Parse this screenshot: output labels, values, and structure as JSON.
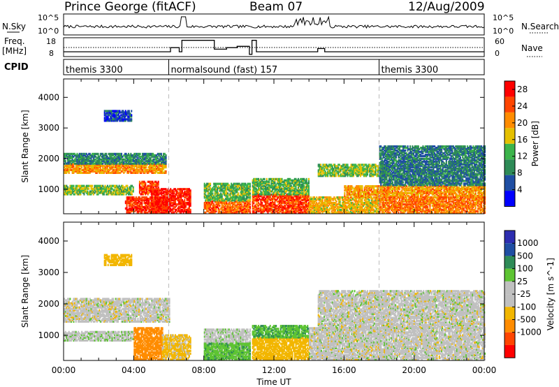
{
  "header": {
    "station": "Prince George (fitACF)",
    "beam": "Beam 07",
    "date": "12/Aug/2009"
  },
  "strip_nsky": {
    "label": "N.Sky",
    "left_ticks": [
      "10^5",
      "10^0"
    ],
    "right_label": "N.Search",
    "right_ticks": [
      "10^5",
      "10^0"
    ]
  },
  "strip_freq": {
    "label_line1": "Freq.",
    "label_line2": "[MHz]",
    "left_ticks": [
      "18",
      "8"
    ],
    "right_label": "Nave",
    "right_ticks": [
      "60",
      "0"
    ],
    "freq_steps": [
      {
        "t0": 0.0,
        "t1": 6.1,
        "mhz": 10.3
      },
      {
        "t0": 6.1,
        "t1": 6.6,
        "mhz": 12.7
      },
      {
        "t0": 6.6,
        "t1": 6.75,
        "mhz": 10.3
      },
      {
        "t0": 6.75,
        "t1": 7.2,
        "mhz": 17.0
      },
      {
        "t0": 8.0,
        "t1": 8.6,
        "mhz": 17.0
      },
      {
        "t0": 8.6,
        "t1": 9.3,
        "mhz": 11.8
      },
      {
        "t0": 9.3,
        "t1": 9.9,
        "mhz": 12.7
      },
      {
        "t0": 9.9,
        "t1": 10.6,
        "mhz": 13.5
      },
      {
        "t0": 10.6,
        "t1": 10.75,
        "mhz": 8.8
      },
      {
        "t0": 10.75,
        "t1": 11.0,
        "mhz": 17.0
      },
      {
        "t0": 11.0,
        "t1": 14.5,
        "mhz": 10.3
      },
      {
        "t0": 14.5,
        "t1": 14.9,
        "mhz": 12.2
      },
      {
        "t0": 14.9,
        "t1": 24.0,
        "mhz": 10.3
      }
    ]
  },
  "cpid": {
    "label": "CPID",
    "segments": [
      {
        "t0": 0.0,
        "t1": 6.0,
        "text": "themis 3300"
      },
      {
        "t0": 6.0,
        "t1": 18.0,
        "text": "normalsound (fast) 157"
      },
      {
        "t0": 18.0,
        "t1": 24.0,
        "text": "themis 3300"
      }
    ]
  },
  "colors": {
    "power_scale": [
      "#0000ff",
      "#1f4ea3",
      "#2e8b57",
      "#3cb44b",
      "#e5c000",
      "#ff8c00",
      "#ff4500",
      "#ff0000"
    ],
    "velocity_scale": [
      "#ff0000",
      "#ff4500",
      "#ff8c00",
      "#f2b600",
      "#c0c0c0",
      "#c0c0c0",
      "#5ec433",
      "#2e8b57",
      "#1f4ea3",
      "#2d2db0"
    ]
  },
  "chart_data": [
    {
      "type": "heatmap",
      "title": "",
      "xlabel": "Time UT",
      "ylabel": "Slant Range [km]",
      "xlim": [
        "00:00",
        "24:00"
      ],
      "ylim": [
        200,
        4600
      ],
      "x_ticks": [
        "00:00",
        "04:00",
        "08:00",
        "12:00",
        "16:00",
        "20:00",
        "00:00"
      ],
      "y_ticks": [
        1000,
        2000,
        3000,
        4000
      ],
      "colorbar": {
        "label": "Power [dB]",
        "ticks": [
          4,
          8,
          12,
          16,
          20,
          24,
          28
        ],
        "range": [
          0,
          30
        ]
      },
      "data_gaps_ut": [
        [
          7.2,
          8.0
        ],
        [
          10.6,
          10.75
        ]
      ],
      "regions": [
        {
          "t0": 0.0,
          "t1": 5.8,
          "r0": 1500,
          "r1": 1800,
          "db": 20
        },
        {
          "t0": 0.0,
          "t1": 5.8,
          "r0": 1800,
          "r1": 2150,
          "db": 9
        },
        {
          "t0": 0.0,
          "t1": 4.0,
          "r0": 800,
          "r1": 1100,
          "db": 14
        },
        {
          "t0": 3.5,
          "t1": 6.0,
          "r0": 200,
          "r1": 700,
          "db": 26
        },
        {
          "t0": 4.3,
          "t1": 5.4,
          "r0": 800,
          "r1": 1250,
          "db": 25
        },
        {
          "t0": 5.0,
          "t1": 7.2,
          "r0": 200,
          "r1": 1000,
          "db": 27
        },
        {
          "t0": 8.0,
          "t1": 10.6,
          "r0": 200,
          "r1": 600,
          "db": 23
        },
        {
          "t0": 8.0,
          "t1": 10.6,
          "r0": 600,
          "r1": 1150,
          "db": 13
        },
        {
          "t0": 10.75,
          "t1": 14.0,
          "r0": 200,
          "r1": 800,
          "db": 25
        },
        {
          "t0": 10.75,
          "t1": 14.0,
          "r0": 800,
          "r1": 1300,
          "db": 13
        },
        {
          "t0": 14.0,
          "t1": 18.0,
          "r0": 200,
          "r1": 700,
          "db": 18
        },
        {
          "t0": 14.5,
          "t1": 18.5,
          "r0": 1400,
          "r1": 1800,
          "db": 14
        },
        {
          "t0": 16.0,
          "t1": 24.0,
          "r0": 700,
          "r1": 1100,
          "db": 20
        },
        {
          "t0": 18.0,
          "t1": 24.0,
          "r0": 200,
          "r1": 700,
          "db": 22
        },
        {
          "t0": 18.0,
          "t1": 24.0,
          "r0": 1100,
          "r1": 2400,
          "db": 8
        },
        {
          "t0": 2.3,
          "t1": 3.9,
          "r0": 3200,
          "r1": 3550,
          "db": 5
        }
      ]
    },
    {
      "type": "heatmap",
      "title": "",
      "xlabel": "Time UT",
      "ylabel": "Slant Range [km]",
      "xlim": [
        "00:00",
        "24:00"
      ],
      "ylim": [
        200,
        4600
      ],
      "x_ticks": [
        "00:00",
        "04:00",
        "08:00",
        "12:00",
        "16:00",
        "20:00",
        "00:00"
      ],
      "y_ticks": [
        1000,
        2000,
        3000,
        4000
      ],
      "colorbar": {
        "label": "Velocity [m s^-1]",
        "tick_labels": [
          "1000",
          "500",
          "100",
          "25",
          "-25",
          "-100",
          "-500",
          "-1000"
        ]
      },
      "data_gaps_ut": [
        [
          7.2,
          8.0
        ],
        [
          10.6,
          10.75
        ]
      ],
      "regions": [
        {
          "t0": 0.0,
          "t1": 6.0,
          "r0": 1400,
          "r1": 2150,
          "vel": 0
        },
        {
          "t0": 0.0,
          "t1": 4.0,
          "r0": 800,
          "r1": 1100,
          "vel": 10
        },
        {
          "t0": 4.0,
          "t1": 5.6,
          "r0": 200,
          "r1": 1200,
          "vel": -180
        },
        {
          "t0": 5.6,
          "t1": 7.2,
          "r0": 200,
          "r1": 1000,
          "vel": -40
        },
        {
          "t0": 8.0,
          "t1": 10.6,
          "r0": 200,
          "r1": 1150,
          "vel": 5
        },
        {
          "t0": 8.0,
          "t1": 10.6,
          "r0": 200,
          "r1": 700,
          "vel": 80
        },
        {
          "t0": 10.75,
          "t1": 14.0,
          "r0": 200,
          "r1": 900,
          "vel": -60
        },
        {
          "t0": 10.75,
          "t1": 14.0,
          "r0": 900,
          "r1": 1300,
          "vel": 90
        },
        {
          "t0": 14.0,
          "t1": 24.0,
          "r0": 200,
          "r1": 1200,
          "vel": 0
        },
        {
          "t0": 14.5,
          "t1": 24.0,
          "r0": 1200,
          "r1": 2400,
          "vel": 0
        },
        {
          "t0": 2.3,
          "t1": 3.9,
          "r0": 3200,
          "r1": 3550,
          "vel": -60
        }
      ]
    }
  ]
}
